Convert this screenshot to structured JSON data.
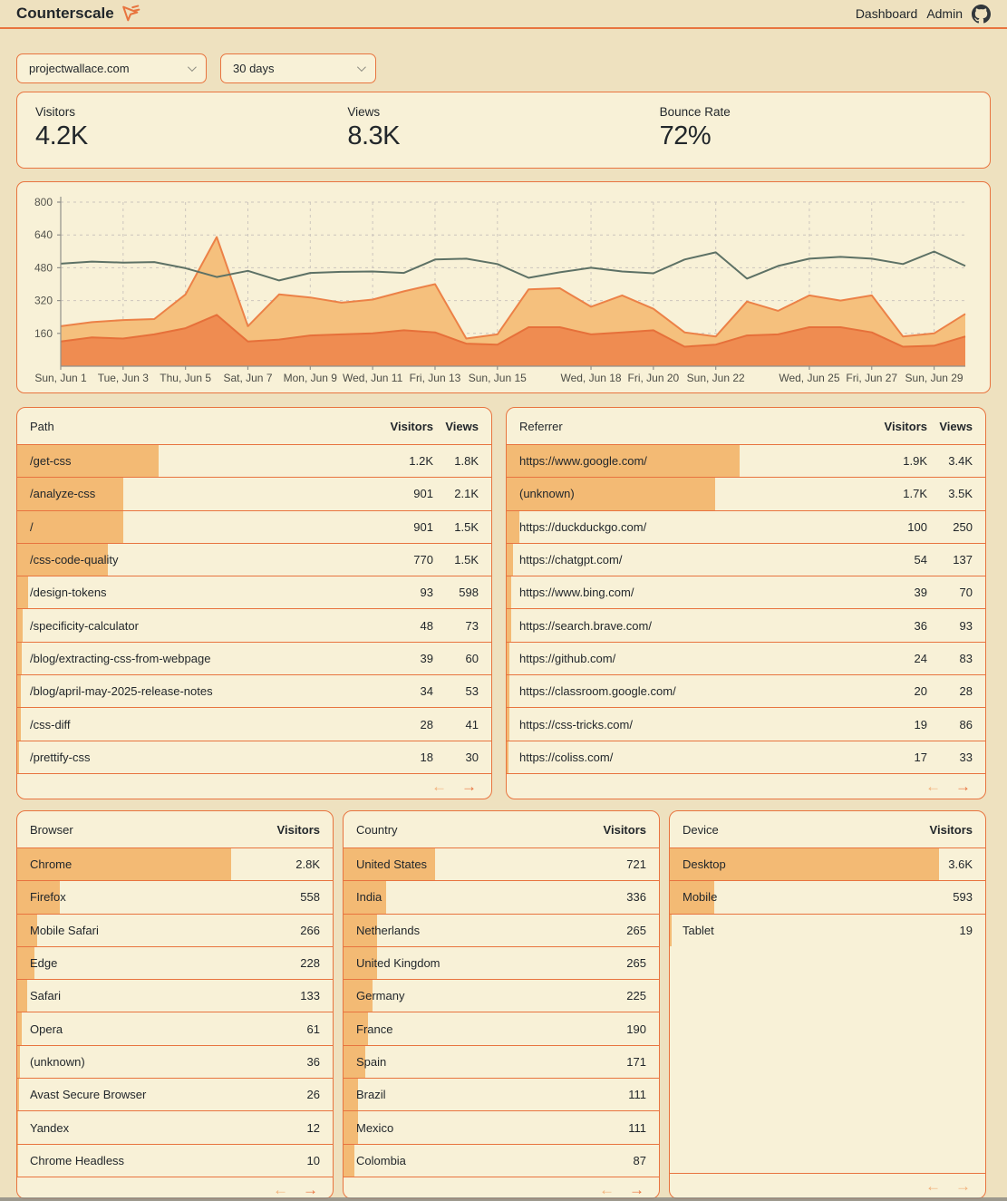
{
  "colors": {
    "accent_orange": "#e8743f",
    "row_bar": "#f3ba74",
    "panel_background": "#f8f1d7",
    "page_background": "#eee1bf",
    "area_views_fill": "#f5c07d",
    "area_views_stroke": "#ec8147",
    "area_visitors_fill": "#ef8c51",
    "area_visitors_stroke": "#e6703a",
    "line_series": "#5d7165",
    "disabled_arrow": "#f1b17b"
  },
  "header": {
    "brand": "Counterscale",
    "nav_dashboard": "Dashboard",
    "nav_admin": "Admin",
    "icons": [
      "cursor-logo-icon",
      "github-icon"
    ]
  },
  "filters": {
    "site": "projectwallace.com",
    "range": "30 days"
  },
  "stats": [
    {
      "label": "Visitors",
      "value": "4.2K"
    },
    {
      "label": "Views",
      "value": "8.3K"
    },
    {
      "label": "Bounce Rate",
      "value": "72%"
    }
  ],
  "chart_data": {
    "type": "area",
    "title": "",
    "xlabel": "",
    "ylabel": "",
    "ylim": [
      0,
      800
    ],
    "yticks": [
      160,
      320,
      480,
      640,
      800
    ],
    "grid": true,
    "legend": "none",
    "x_days": [
      "Jun 1",
      "Jun 2",
      "Jun 3",
      "Jun 4",
      "Jun 5",
      "Jun 6",
      "Jun 7",
      "Jun 8",
      "Jun 9",
      "Jun 10",
      "Jun 11",
      "Jun 12",
      "Jun 13",
      "Jun 14",
      "Jun 15",
      "Jun 16",
      "Jun 17",
      "Jun 18",
      "Jun 19",
      "Jun 20",
      "Jun 21",
      "Jun 22",
      "Jun 23",
      "Jun 24",
      "Jun 25",
      "Jun 26",
      "Jun 27",
      "Jun 28",
      "Jun 29",
      "Jun 30"
    ],
    "x_tick_labels": [
      {
        "i": 0,
        "label": "Sun, Jun 1"
      },
      {
        "i": 2,
        "label": "Tue, Jun 3"
      },
      {
        "i": 4,
        "label": "Thu, Jun 5"
      },
      {
        "i": 6,
        "label": "Sat, Jun 7"
      },
      {
        "i": 8,
        "label": "Mon, Jun 9"
      },
      {
        "i": 10,
        "label": "Wed, Jun 11"
      },
      {
        "i": 12,
        "label": "Fri, Jun 13"
      },
      {
        "i": 14,
        "label": "Sun, Jun 15"
      },
      {
        "i": 17,
        "label": "Wed, Jun 18"
      },
      {
        "i": 19,
        "label": "Fri, Jun 20"
      },
      {
        "i": 21,
        "label": "Sun, Jun 22"
      },
      {
        "i": 24,
        "label": "Wed, Jun 25"
      },
      {
        "i": 26,
        "label": "Fri, Jun 27"
      },
      {
        "i": 28,
        "label": "Sun, Jun 29"
      }
    ],
    "series": [
      {
        "name": "views",
        "type": "area",
        "fill": "#f5c07d",
        "stroke": "#ec8147",
        "values": [
          195,
          215,
          225,
          230,
          350,
          630,
          195,
          350,
          335,
          310,
          325,
          365,
          400,
          135,
          155,
          375,
          380,
          290,
          345,
          280,
          165,
          145,
          315,
          270,
          345,
          320,
          345,
          145,
          160,
          255
        ]
      },
      {
        "name": "visitors",
        "type": "area",
        "fill": "#ef8c51",
        "stroke": "#e6703a",
        "values": [
          120,
          140,
          135,
          155,
          185,
          250,
          120,
          130,
          150,
          155,
          160,
          175,
          165,
          110,
          105,
          190,
          190,
          155,
          165,
          175,
          95,
          105,
          150,
          155,
          190,
          190,
          165,
          95,
          100,
          145
        ]
      },
      {
        "name": "bounce-line",
        "type": "line",
        "stroke": "#5d7165",
        "values": [
          500,
          510,
          505,
          508,
          478,
          435,
          465,
          418,
          455,
          460,
          462,
          455,
          520,
          524,
          498,
          431,
          458,
          480,
          462,
          453,
          520,
          555,
          427,
          489,
          524,
          533,
          524,
          498,
          559,
          489
        ]
      }
    ]
  },
  "tables": [
    {
      "id": "path",
      "placement": "top",
      "label_header": "Path",
      "value_headers": [
        "Visitors",
        "Views"
      ],
      "rows": [
        {
          "label": "/get-css",
          "values": [
            "1.2K",
            "1.8K"
          ],
          "bar_value": 1200
        },
        {
          "label": "/analyze-css",
          "values": [
            "901",
            "2.1K"
          ],
          "bar_value": 901
        },
        {
          "label": "/",
          "values": [
            "901",
            "1.5K"
          ],
          "bar_value": 901
        },
        {
          "label": "/css-code-quality",
          "values": [
            "770",
            "1.5K"
          ],
          "bar_value": 770
        },
        {
          "label": "/design-tokens",
          "values": [
            "93",
            "598"
          ],
          "bar_value": 93
        },
        {
          "label": "/specificity-calculator",
          "values": [
            "48",
            "73"
          ],
          "bar_value": 48
        },
        {
          "label": "/blog/extracting-css-from-webpage",
          "values": [
            "39",
            "60"
          ],
          "bar_value": 39
        },
        {
          "label": "/blog/april-may-2025-release-notes",
          "values": [
            "34",
            "53"
          ],
          "bar_value": 34
        },
        {
          "label": "/css-diff",
          "values": [
            "28",
            "41"
          ],
          "bar_value": 28
        },
        {
          "label": "/prettify-css",
          "values": [
            "18",
            "30"
          ],
          "bar_value": 18
        }
      ],
      "pagination": {
        "prev_enabled": false,
        "next_enabled": true
      }
    },
    {
      "id": "referrer",
      "placement": "top",
      "label_header": "Referrer",
      "value_headers": [
        "Visitors",
        "Views"
      ],
      "rows": [
        {
          "label": "https://www.google.com/",
          "values": [
            "1.9K",
            "3.4K"
          ],
          "bar_value": 1900
        },
        {
          "label": "(unknown)",
          "values": [
            "1.7K",
            "3.5K"
          ],
          "bar_value": 1700
        },
        {
          "label": "https://duckduckgo.com/",
          "values": [
            "100",
            "250"
          ],
          "bar_value": 100
        },
        {
          "label": "https://chatgpt.com/",
          "values": [
            "54",
            "137"
          ],
          "bar_value": 54
        },
        {
          "label": "https://www.bing.com/",
          "values": [
            "39",
            "70"
          ],
          "bar_value": 39
        },
        {
          "label": "https://search.brave.com/",
          "values": [
            "36",
            "93"
          ],
          "bar_value": 36
        },
        {
          "label": "https://github.com/",
          "values": [
            "24",
            "83"
          ],
          "bar_value": 24
        },
        {
          "label": "https://classroom.google.com/",
          "values": [
            "20",
            "28"
          ],
          "bar_value": 20
        },
        {
          "label": "https://css-tricks.com/",
          "values": [
            "19",
            "86"
          ],
          "bar_value": 19
        },
        {
          "label": "https://coliss.com/",
          "values": [
            "17",
            "33"
          ],
          "bar_value": 17
        }
      ],
      "pagination": {
        "prev_enabled": false,
        "next_enabled": true
      }
    },
    {
      "id": "browser",
      "placement": "bottom",
      "label_header": "Browser",
      "value_headers": [
        "Visitors"
      ],
      "rows": [
        {
          "label": "Chrome",
          "values": [
            "2.8K"
          ],
          "bar_value": 2800
        },
        {
          "label": "Firefox",
          "values": [
            "558"
          ],
          "bar_value": 558
        },
        {
          "label": "Mobile Safari",
          "values": [
            "266"
          ],
          "bar_value": 266
        },
        {
          "label": "Edge",
          "values": [
            "228"
          ],
          "bar_value": 228
        },
        {
          "label": "Safari",
          "values": [
            "133"
          ],
          "bar_value": 133
        },
        {
          "label": "Opera",
          "values": [
            "61"
          ],
          "bar_value": 61
        },
        {
          "label": "(unknown)",
          "values": [
            "36"
          ],
          "bar_value": 36
        },
        {
          "label": "Avast Secure Browser",
          "values": [
            "26"
          ],
          "bar_value": 26
        },
        {
          "label": "Yandex",
          "values": [
            "12"
          ],
          "bar_value": 12
        },
        {
          "label": "Chrome Headless",
          "values": [
            "10"
          ],
          "bar_value": 10
        }
      ],
      "pagination": {
        "prev_enabled": false,
        "next_enabled": true
      }
    },
    {
      "id": "country",
      "placement": "bottom",
      "label_header": "Country",
      "value_headers": [
        "Visitors"
      ],
      "rows": [
        {
          "label": "United States",
          "values": [
            "721"
          ],
          "bar_value": 721
        },
        {
          "label": "India",
          "values": [
            "336"
          ],
          "bar_value": 336
        },
        {
          "label": "Netherlands",
          "values": [
            "265"
          ],
          "bar_value": 265
        },
        {
          "label": "United Kingdom",
          "values": [
            "265"
          ],
          "bar_value": 265
        },
        {
          "label": "Germany",
          "values": [
            "225"
          ],
          "bar_value": 225
        },
        {
          "label": "France",
          "values": [
            "190"
          ],
          "bar_value": 190
        },
        {
          "label": "Spain",
          "values": [
            "171"
          ],
          "bar_value": 171
        },
        {
          "label": "Brazil",
          "values": [
            "111"
          ],
          "bar_value": 111
        },
        {
          "label": "Mexico",
          "values": [
            "111"
          ],
          "bar_value": 111
        },
        {
          "label": "Colombia",
          "values": [
            "87"
          ],
          "bar_value": 87
        }
      ],
      "pagination": {
        "prev_enabled": false,
        "next_enabled": true
      }
    },
    {
      "id": "device",
      "placement": "bottom",
      "label_header": "Device",
      "value_headers": [
        "Visitors"
      ],
      "rows": [
        {
          "label": "Desktop",
          "values": [
            "3.6K"
          ],
          "bar_value": 3600
        },
        {
          "label": "Mobile",
          "values": [
            "593"
          ],
          "bar_value": 593
        },
        {
          "label": "Tablet",
          "values": [
            "19"
          ],
          "bar_value": 19
        }
      ],
      "pagination": {
        "prev_enabled": false,
        "next_enabled": false
      }
    }
  ],
  "pagination_icons": {
    "prev": "←",
    "next": "→"
  }
}
